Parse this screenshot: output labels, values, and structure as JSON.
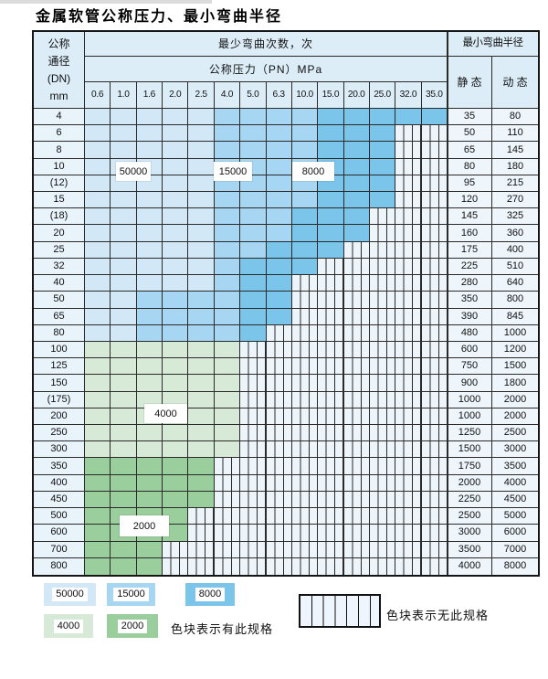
{
  "title": "金属软管公称压力、最小弯曲半径",
  "table": {
    "corner_lines": [
      "公称",
      "通径",
      "(DN)",
      "mm"
    ],
    "bend_header": "最少弯曲次数，次",
    "pn_header": "公称压力（PN）MPa",
    "radius_header": "最小弯曲半径",
    "static_header": "静 态",
    "dynamic_header": "动 态",
    "pressure_columns": [
      "0.6",
      "1.0",
      "1.6",
      "2.0",
      "2.5",
      "4.0",
      "5.0",
      "6.3",
      "10.0",
      "15.0",
      "20.0",
      "25.0",
      "32.0",
      "35.0"
    ],
    "band_codes": {
      "L": "50000",
      "M": "15000",
      "D": "8000",
      "G": "4000",
      "E": "2000",
      "X": "no-spec"
    },
    "rows": [
      {
        "dn": "4",
        "bands": "LLLLLMMMMDDDDD",
        "static_radius": "35",
        "dynamic_radius": "80"
      },
      {
        "dn": "6",
        "bands": "LLLLLMMMMDDDXX",
        "static_radius": "50",
        "dynamic_radius": "110"
      },
      {
        "dn": "8",
        "bands": "LLLLLMMMMDDDXX",
        "static_radius": "65",
        "dynamic_radius": "145"
      },
      {
        "dn": "10",
        "bands": "LLLLLMMMMDDDXX",
        "static_radius": "80",
        "dynamic_radius": "180"
      },
      {
        "dn": "(12)",
        "bands": "LLLLLMMMMDDDXX",
        "static_radius": "95",
        "dynamic_radius": "215"
      },
      {
        "dn": "15",
        "bands": "LLLLLMMMMDDDXX",
        "static_radius": "120",
        "dynamic_radius": "270"
      },
      {
        "dn": "(18)",
        "bands": "LLLLLMMMDDDXXX",
        "static_radius": "145",
        "dynamic_radius": "325"
      },
      {
        "dn": "20",
        "bands": "LLLLLMMMDDDXXX",
        "static_radius": "160",
        "dynamic_radius": "360"
      },
      {
        "dn": "25",
        "bands": "LLLLLMMDDDXXXX",
        "static_radius": "175",
        "dynamic_radius": "400"
      },
      {
        "dn": "32",
        "bands": "LLLLLMDDDXXXXX",
        "static_radius": "225",
        "dynamic_radius": "510"
      },
      {
        "dn": "40",
        "bands": "LLLLLMDDXXXXXX",
        "static_radius": "280",
        "dynamic_radius": "640"
      },
      {
        "dn": "50",
        "bands": "LLMMMMDDXXXXXX",
        "static_radius": "350",
        "dynamic_radius": "800"
      },
      {
        "dn": "65",
        "bands": "LLMMMMDDXXXXXX",
        "static_radius": "390",
        "dynamic_radius": "845"
      },
      {
        "dn": "80",
        "bands": "LLMMMMDXXXXXXX",
        "static_radius": "480",
        "dynamic_radius": "1000"
      },
      {
        "dn": "100",
        "bands": "GGGGGGXXXXXXXX",
        "static_radius": "600",
        "dynamic_radius": "1200"
      },
      {
        "dn": "125",
        "bands": "GGGGGGXXXXXXXX",
        "static_radius": "750",
        "dynamic_radius": "1500"
      },
      {
        "dn": "150",
        "bands": "GGGGGGXXXXXXXX",
        "static_radius": "900",
        "dynamic_radius": "1800"
      },
      {
        "dn": "(175)",
        "bands": "GGGGGGXXXXXXXX",
        "static_radius": "1000",
        "dynamic_radius": "2000"
      },
      {
        "dn": "200",
        "bands": "GGGGGGXXXXXXXX",
        "static_radius": "1000",
        "dynamic_radius": "2000"
      },
      {
        "dn": "250",
        "bands": "GGGGGGXXXXXXXX",
        "static_radius": "1250",
        "dynamic_radius": "2500"
      },
      {
        "dn": "300",
        "bands": "GGGGGGXXXXXXXX",
        "static_radius": "1500",
        "dynamic_radius": "3000"
      },
      {
        "dn": "350",
        "bands": "EEEEEXXXXXXXXX",
        "static_radius": "1750",
        "dynamic_radius": "3500"
      },
      {
        "dn": "400",
        "bands": "EEEEEXXXXXXXXX",
        "static_radius": "2000",
        "dynamic_radius": "4000"
      },
      {
        "dn": "450",
        "bands": "EEEEEXXXXXXXXX",
        "static_radius": "2250",
        "dynamic_radius": "4500"
      },
      {
        "dn": "500",
        "bands": "EEEEXXXXXXXXXX",
        "static_radius": "2500",
        "dynamic_radius": "5000"
      },
      {
        "dn": "600",
        "bands": "EEEEXXXXXXXXXX",
        "static_radius": "3000",
        "dynamic_radius": "6000"
      },
      {
        "dn": "700",
        "bands": "EEEXXXXXXXXXXX",
        "static_radius": "3500",
        "dynamic_radius": "7000"
      },
      {
        "dn": "800",
        "bands": "EEEXXXXXXXXXXX",
        "static_radius": "4000",
        "dynamic_radius": "8000"
      }
    ]
  },
  "overlay_labels": {
    "b50000": "50000",
    "b15000": "15000",
    "b8000": "8000",
    "b4000": "4000",
    "b2000": "2000"
  },
  "legend": {
    "items": [
      {
        "label": "50000",
        "color": "b50000"
      },
      {
        "label": "15000",
        "color": "b15000"
      },
      {
        "label": "8000",
        "color": "b8000"
      },
      {
        "label": "4000",
        "color": "b4000"
      },
      {
        "label": "2000",
        "color": "b2000"
      }
    ],
    "has_spec_note": "色块表示有此规格",
    "no_spec_note": "色块表示无此规格"
  },
  "colors": {
    "b50000": "#d2e8f7",
    "b15000": "#a6d6f2",
    "b8000": "#7bc5eb",
    "b4000": "#d6ead7",
    "b2000": "#9ace9d",
    "header_bg": "#dcedf8",
    "dn_bg": "#e8f3fa",
    "val_bg": "#eef6fc",
    "hatch_bg": "#edf4fa",
    "grid": "#2a2a2a"
  }
}
